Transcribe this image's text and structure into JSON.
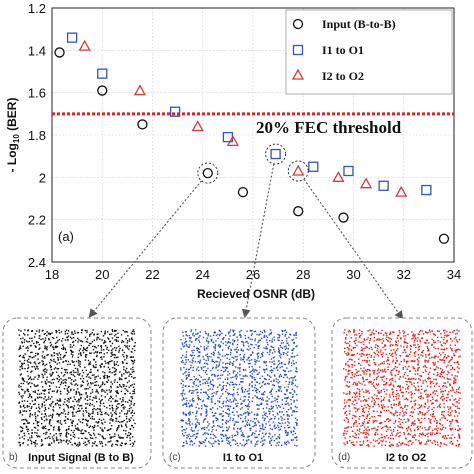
{
  "chart_data": {
    "type": "scatter",
    "xlabel": "Recieved OSNR (dB)",
    "ylabel_main": "- Log",
    "ylabel_sub": "10",
    "ylabel_tail": " (BER)",
    "xlim": [
      18,
      34
    ],
    "ylim": [
      1.2,
      2.4
    ],
    "y_inverted": true,
    "grid": true,
    "x_ticks": [
      "18",
      "20",
      "22",
      "24",
      "26",
      "28",
      "30",
      "32",
      "34"
    ],
    "y_ticks": [
      "1.2",
      "1.4",
      "1.6",
      "1.8",
      "2",
      "2.2",
      "2.4"
    ],
    "legend_position": "top-right",
    "series": [
      {
        "name": "Input (B-to-B)",
        "marker": "circle",
        "color": "#111111",
        "points": [
          [
            18.3,
            1.41
          ],
          [
            20.0,
            1.59
          ],
          [
            21.6,
            1.75
          ],
          [
            24.2,
            1.98
          ],
          [
            25.6,
            2.07
          ],
          [
            27.8,
            2.16
          ],
          [
            29.6,
            2.19
          ],
          [
            33.6,
            2.29
          ]
        ]
      },
      {
        "name": "I1 to O1",
        "marker": "square",
        "color": "#2f55c0",
        "points": [
          [
            18.8,
            1.34
          ],
          [
            20.0,
            1.51
          ],
          [
            22.9,
            1.69
          ],
          [
            25.0,
            1.81
          ],
          [
            26.9,
            1.89
          ],
          [
            28.4,
            1.95
          ],
          [
            29.8,
            1.97
          ],
          [
            31.2,
            2.04
          ],
          [
            32.9,
            2.06
          ]
        ]
      },
      {
        "name": "I2 to O2",
        "marker": "triangle",
        "color": "#d63a3a",
        "points": [
          [
            19.3,
            1.38
          ],
          [
            21.5,
            1.59
          ],
          [
            23.8,
            1.76
          ],
          [
            25.2,
            1.83
          ],
          [
            27.8,
            1.97
          ],
          [
            29.4,
            2.0
          ],
          [
            30.5,
            2.03
          ],
          [
            31.9,
            2.07
          ]
        ]
      }
    ],
    "threshold": {
      "value": 1.7,
      "label": "20% FEC threshold",
      "color": "#d6262a"
    },
    "panel_a_label": "(a)",
    "callouts": [
      {
        "from": [
          24.2,
          1.98
        ],
        "to_panel": 0
      },
      {
        "from": [
          26.9,
          1.89
        ],
        "to_panel": 1
      },
      {
        "from": [
          27.8,
          1.97
        ],
        "to_panel": 2
      }
    ],
    "constellation_panels": [
      {
        "letter": "b)",
        "label": "Input Signal (B to B)",
        "color": "#111111"
      },
      {
        "letter": "(c)",
        "label": "I1 to O1",
        "color": "#2a4fc4"
      },
      {
        "letter": "(d)",
        "label": "I2 to O2",
        "color": "#e02222"
      }
    ]
  }
}
